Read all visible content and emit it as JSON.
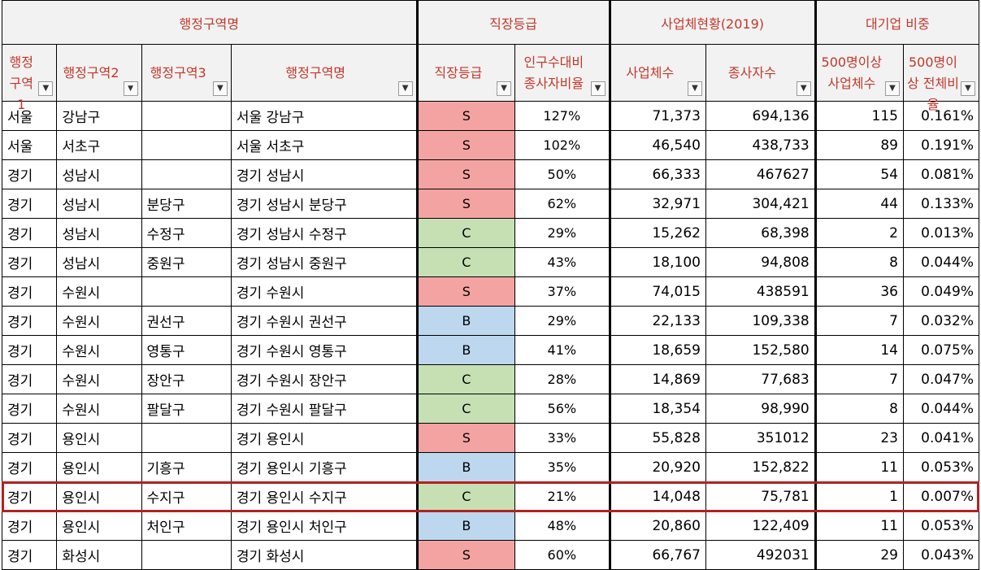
{
  "headers": {
    "group": [
      "행정구역명",
      "직장등급",
      "사업체현황(2019)",
      "대기업 비중"
    ],
    "columns": [
      "행정구역1",
      "행정구역2",
      "행정구역3",
      "행정구역명",
      "직장등급",
      "인구수대비 종사자비율",
      "사업체수",
      "종사자수",
      "500명이상 사업체수",
      "500명이상 전체비율"
    ]
  },
  "colors": {
    "S": "#f4a3a3",
    "B": "#bdd7ee",
    "C": "#c6e0b4",
    "header_text": "#c0392b",
    "highlight": "#b22222"
  },
  "rows": [
    {
      "c1": "서울",
      "c2": "강남구",
      "c3": "",
      "name": "서울 강남구",
      "grade": "S",
      "ratio": "127%",
      "biz": "71,373",
      "emp": "694,136",
      "big": "115",
      "share": "0.161%"
    },
    {
      "c1": "서울",
      "c2": "서초구",
      "c3": "",
      "name": "서울 서초구",
      "grade": "S",
      "ratio": "102%",
      "biz": "46,540",
      "emp": "438,733",
      "big": "89",
      "share": "0.191%"
    },
    {
      "c1": "경기",
      "c2": "성남시",
      "c3": "",
      "name": "경기 성남시",
      "grade": "S",
      "ratio": "50%",
      "biz": "66,333",
      "emp": "467627",
      "big": "54",
      "share": "0.081%"
    },
    {
      "c1": "경기",
      "c2": "성남시",
      "c3": "분당구",
      "name": "경기 성남시 분당구",
      "grade": "S",
      "ratio": "62%",
      "biz": "32,971",
      "emp": "304,421",
      "big": "44",
      "share": "0.133%"
    },
    {
      "c1": "경기",
      "c2": "성남시",
      "c3": "수정구",
      "name": "경기 성남시 수정구",
      "grade": "C",
      "ratio": "29%",
      "biz": "15,262",
      "emp": "68,398",
      "big": "2",
      "share": "0.013%"
    },
    {
      "c1": "경기",
      "c2": "성남시",
      "c3": "중원구",
      "name": "경기 성남시 중원구",
      "grade": "C",
      "ratio": "43%",
      "biz": "18,100",
      "emp": "94,808",
      "big": "8",
      "share": "0.044%"
    },
    {
      "c1": "경기",
      "c2": "수원시",
      "c3": "",
      "name": "경기 수원시",
      "grade": "S",
      "ratio": "37%",
      "biz": "74,015",
      "emp": "438591",
      "big": "36",
      "share": "0.049%"
    },
    {
      "c1": "경기",
      "c2": "수원시",
      "c3": "권선구",
      "name": "경기 수원시 권선구",
      "grade": "B",
      "ratio": "29%",
      "biz": "22,133",
      "emp": "109,338",
      "big": "7",
      "share": "0.032%"
    },
    {
      "c1": "경기",
      "c2": "수원시",
      "c3": "영통구",
      "name": "경기 수원시 영통구",
      "grade": "B",
      "ratio": "41%",
      "biz": "18,659",
      "emp": "152,580",
      "big": "14",
      "share": "0.075%"
    },
    {
      "c1": "경기",
      "c2": "수원시",
      "c3": "장안구",
      "name": "경기 수원시 장안구",
      "grade": "C",
      "ratio": "28%",
      "biz": "14,869",
      "emp": "77,683",
      "big": "7",
      "share": "0.047%"
    },
    {
      "c1": "경기",
      "c2": "수원시",
      "c3": "팔달구",
      "name": "경기 수원시 팔달구",
      "grade": "C",
      "ratio": "56%",
      "biz": "18,354",
      "emp": "98,990",
      "big": "8",
      "share": "0.044%"
    },
    {
      "c1": "경기",
      "c2": "용인시",
      "c3": "",
      "name": "경기 용인시",
      "grade": "S",
      "ratio": "33%",
      "biz": "55,828",
      "emp": "351012",
      "big": "23",
      "share": "0.041%"
    },
    {
      "c1": "경기",
      "c2": "용인시",
      "c3": "기흥구",
      "name": "경기 용인시 기흥구",
      "grade": "B",
      "ratio": "35%",
      "biz": "20,920",
      "emp": "152,822",
      "big": "11",
      "share": "0.053%"
    },
    {
      "c1": "경기",
      "c2": "용인시",
      "c3": "수지구",
      "name": "경기 용인시 수지구",
      "grade": "C",
      "ratio": "21%",
      "biz": "14,048",
      "emp": "75,781",
      "big": "1",
      "share": "0.007%"
    },
    {
      "c1": "경기",
      "c2": "용인시",
      "c3": "처인구",
      "name": "경기 용인시 처인구",
      "grade": "B",
      "ratio": "48%",
      "biz": "20,860",
      "emp": "122,409",
      "big": "11",
      "share": "0.053%"
    },
    {
      "c1": "경기",
      "c2": "화성시",
      "c3": "",
      "name": "경기 화성시",
      "grade": "S",
      "ratio": "60%",
      "biz": "66,767",
      "emp": "492031",
      "big": "29",
      "share": "0.043%"
    }
  ]
}
